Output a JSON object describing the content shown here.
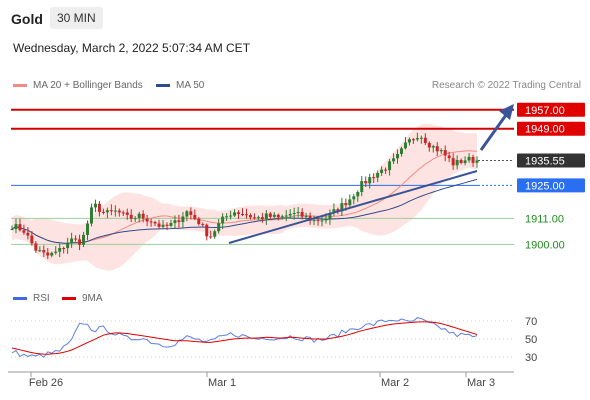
{
  "header": {
    "title": "Gold",
    "interval": "30 MIN",
    "datetime": "Wednesday, March 2, 2022 5:07:34 AM CET"
  },
  "legend": {
    "ma_bb": {
      "label": "MA 20 + Bollinger Bands",
      "color": "#f28b82"
    },
    "ma50": {
      "label": "MA 50",
      "color": "#2f4b8c"
    },
    "credit": "Research © 2022 Trading Central",
    "rsi": {
      "label": "RSI",
      "color": "#4169e1"
    },
    "ma9": {
      "label": "9MA",
      "color": "#e00000"
    }
  },
  "chart_data": [
    {
      "type": "candlestick",
      "title": "Gold",
      "ylim": [
        1890,
        1962
      ],
      "x_labels": [
        "Feb 26",
        "Mar 1",
        "Mar 2",
        "Mar 3"
      ],
      "levels": [
        {
          "value": 1957.0,
          "label": "1957.00",
          "kind": "resistance",
          "color": "#e00000"
        },
        {
          "value": 1949.0,
          "label": "1949.00",
          "kind": "resistance",
          "color": "#e00000"
        },
        {
          "value": 1935.55,
          "label": "1935.55",
          "kind": "last price",
          "color": "#333333"
        },
        {
          "value": 1925.0,
          "label": "1925.00",
          "kind": "pivot",
          "color": "#2a6ef2"
        },
        {
          "value": 1911.0,
          "label": "1911.00",
          "kind": "support",
          "color": "#1e8c1e"
        },
        {
          "value": 1900.0,
          "label": "1900.00",
          "kind": "support",
          "color": "#1e8c1e"
        }
      ],
      "close_path": [
        1908,
        1906,
        1898,
        1895,
        1897,
        1902,
        1901,
        1917,
        1913,
        1914,
        1911,
        1912,
        1910,
        1907,
        1909,
        1914,
        1910,
        1903,
        1910,
        1914,
        1913,
        1911,
        1912,
        1911,
        1913,
        1912,
        1910,
        1911,
        1915,
        1919,
        1925,
        1929,
        1932,
        1936,
        1943,
        1947,
        1942,
        1939,
        1934,
        1936,
        1935.55
      ]
    },
    {
      "type": "line",
      "title": "RSI",
      "ylim": [
        20,
        80
      ],
      "yticks": [
        70,
        50,
        30
      ],
      "series": [
        {
          "name": "RSI",
          "values": [
            36,
            32,
            30,
            33,
            36,
            45,
            70,
            60,
            62,
            55,
            50,
            52,
            47,
            43,
            45,
            52,
            49,
            46,
            52,
            56,
            53,
            50,
            52,
            51,
            53,
            51,
            49,
            50,
            55,
            60,
            64,
            66,
            70,
            72,
            68,
            72,
            66,
            62,
            55,
            54,
            52
          ]
        },
        {
          "name": "9MA",
          "values": [
            40,
            37,
            34,
            33,
            34,
            37,
            43,
            49,
            55,
            57,
            56,
            54,
            52,
            50,
            48,
            48,
            47,
            46,
            48,
            50,
            51,
            51,
            52,
            51,
            52,
            51,
            50,
            50,
            52,
            55,
            59,
            62,
            65,
            67,
            68,
            69,
            69,
            67,
            63,
            59,
            55
          ]
        }
      ]
    }
  ]
}
